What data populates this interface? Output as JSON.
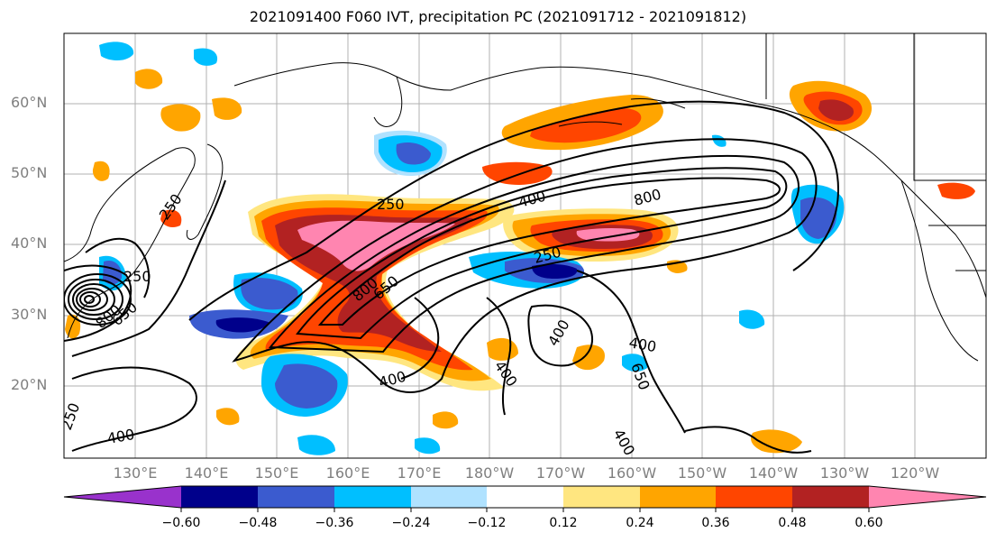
{
  "title": "2021091400 F060 IVT, precipitation PC (2021091712 - 2021091812)",
  "lat_labels": [
    "60°N",
    "50°N",
    "40°N",
    "30°N",
    "20°N"
  ],
  "lon_labels": [
    "130°E",
    "140°E",
    "150°E",
    "160°E",
    "170°E",
    "180°W",
    "170°W",
    "160°W",
    "150°W",
    "140°W",
    "130°W",
    "120°W"
  ],
  "colorbar": {
    "ticks": [
      "−0.60",
      "−0.48",
      "−0.36",
      "−0.24",
      "−0.12",
      "0.12",
      "0.24",
      "0.36",
      "0.48",
      "0.60"
    ],
    "colors": [
      "#9932cc",
      "#00008b",
      "#3b5bcf",
      "#00bfff",
      "#b0e2ff",
      "#ffffff",
      "#ffe680",
      "#ffa500",
      "#ff4500",
      "#b22222",
      "#ff85b0"
    ]
  },
  "contour_labels": [
    "250",
    "400",
    "800",
    "250",
    "400",
    "800",
    "650",
    "250",
    "800",
    "650",
    "400",
    "400",
    "250",
    "400",
    "400",
    "650",
    "400",
    "250",
    "650",
    "400"
  ]
}
